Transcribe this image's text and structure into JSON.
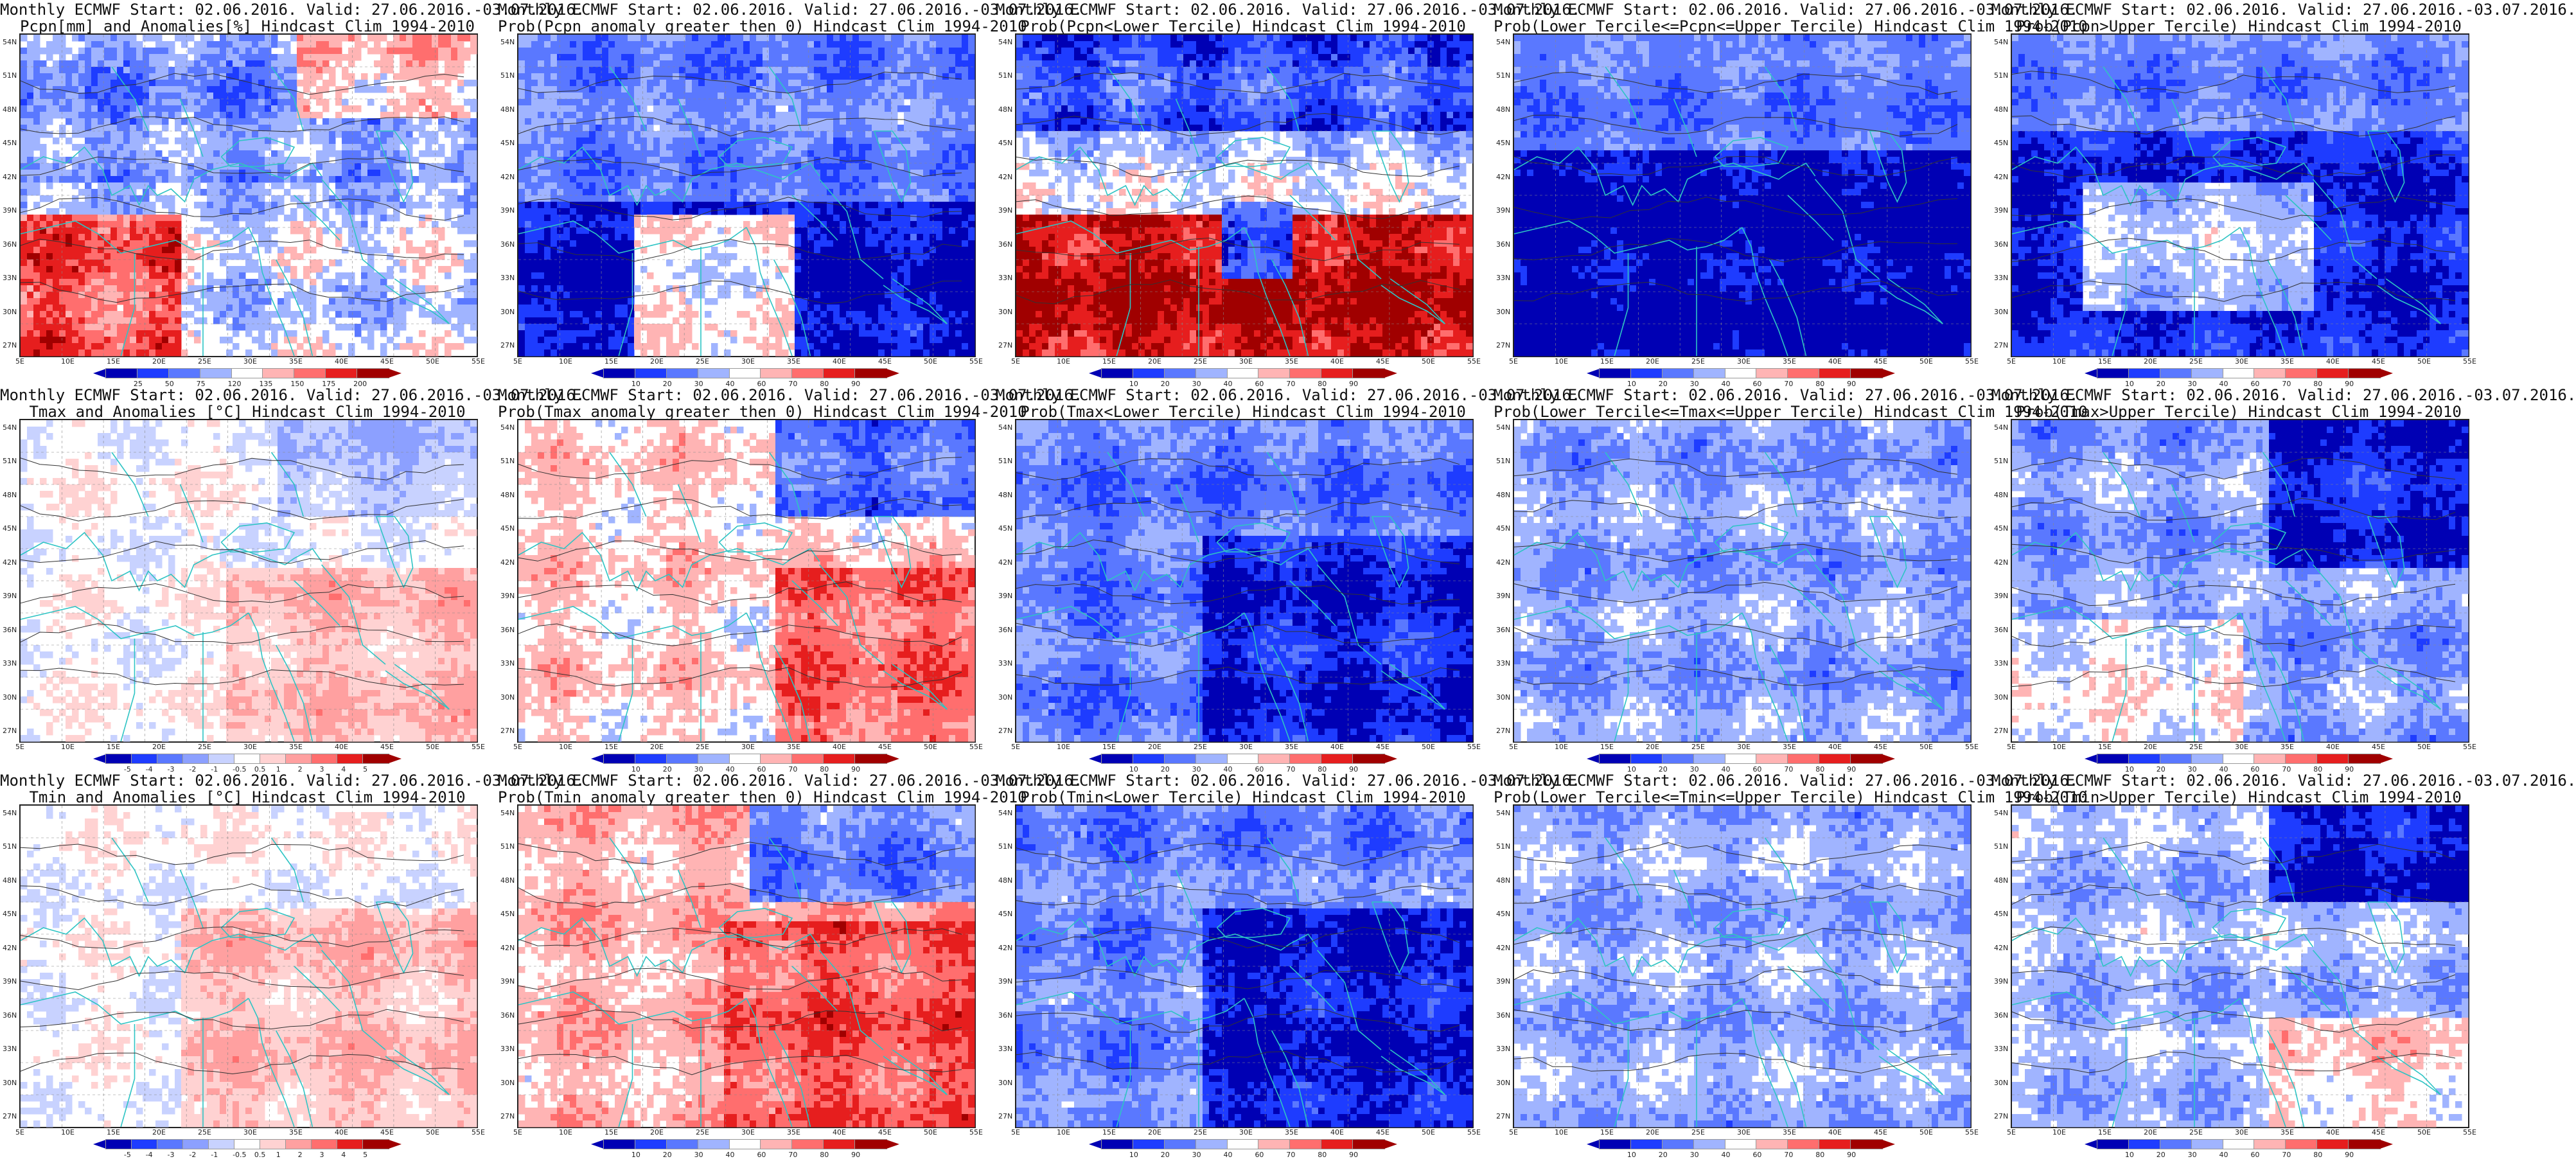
{
  "panels": [
    {
      "line1": "Monthly ECMWF Start: 02.06.2016. Valid: 27.06.2016.-03.07.2016.",
      "line2": "Pcpn[mm] and Anomalies[%] Hindcast Clim 1994-2010",
      "scheme": "pcpn_anom",
      "ticks": [
        "25",
        "50",
        "75",
        "120",
        "135",
        "150",
        "175",
        "200"
      ]
    },
    {
      "line1": "Monthly ECMWF Start: 02.06.2016. Valid: 27.06.2016.-03.07.2016.",
      "line2": "Prob(Pcpn anomaly greater then 0) Hindcast Clim 1994-2010",
      "scheme": "prob",
      "ticks": [
        "10",
        "20",
        "30",
        "40",
        "60",
        "70",
        "80",
        "90"
      ]
    },
    {
      "line1": "Monthly ECMWF Start: 02.06.2016. Valid: 27.06.2016.-03.07.2016.",
      "line2": "Prob(Pcpn<Lower Tercile) Hindcast Clim 1994-2010",
      "scheme": "prob",
      "ticks": [
        "10",
        "20",
        "30",
        "40",
        "60",
        "70",
        "80",
        "90"
      ]
    },
    {
      "line1": "Monthly ECMWF Start: 02.06.2016. Valid: 27.06.2016.-03.07.2016.",
      "line2": "Prob(Lower Tercile<=Pcpn<=Upper Tercile) Hindcast Clim 1994-2010",
      "scheme": "prob",
      "ticks": [
        "10",
        "20",
        "30",
        "40",
        "60",
        "70",
        "80",
        "90"
      ]
    },
    {
      "line1": "Monthly ECMWF Start: 02.06.2016. Valid: 27.06.2016.-03.07.2016.",
      "line2": "Prob(Pcpn>Upper Tercile) Hindcast Clim 1994-2010",
      "scheme": "prob",
      "ticks": [
        "10",
        "20",
        "30",
        "40",
        "60",
        "70",
        "80",
        "90"
      ]
    },
    {
      "line1": "Monthly ECMWF Start: 02.06.2016. Valid: 27.06.2016.-03.07.2016.",
      "line2": "Tmax and Anomalies [°C] Hindcast Clim 1994-2010",
      "scheme": "temp_anom",
      "ticks": [
        "-5",
        "-4",
        "-3",
        "-2",
        "-1",
        "-0.5",
        "0.5",
        "1",
        "2",
        "3",
        "4",
        "5"
      ]
    },
    {
      "line1": "Monthly ECMWF Start: 02.06.2016. Valid: 27.06.2016.-03.07.2016.",
      "line2": "Prob(Tmax anomaly greater then 0) Hindcast Clim 1994-2010",
      "scheme": "prob",
      "ticks": [
        "10",
        "20",
        "30",
        "40",
        "60",
        "70",
        "80",
        "90"
      ]
    },
    {
      "line1": "Monthly ECMWF Start: 02.06.2016. Valid: 27.06.2016.-03.07.2016.",
      "line2": "Prob(Tmax<Lower Tercile) Hindcast Clim 1994-2010",
      "scheme": "prob",
      "ticks": [
        "10",
        "20",
        "30",
        "40",
        "60",
        "70",
        "80",
        "90"
      ]
    },
    {
      "line1": "Monthly ECMWF Start: 02.06.2016. Valid: 27.06.2016.-03.07.2016.",
      "line2": "Prob(Lower Tercile<=Tmax<=Upper Tercile) Hindcast Clim 1994-2010",
      "scheme": "prob",
      "ticks": [
        "10",
        "20",
        "30",
        "40",
        "60",
        "70",
        "80",
        "90"
      ]
    },
    {
      "line1": "Monthly ECMWF Start: 02.06.2016. Valid: 27.06.2016.-03.07.2016.",
      "line2": "Prob(Tmax>Upper Tercile) Hindcast Clim 1994-2010",
      "scheme": "prob",
      "ticks": [
        "10",
        "20",
        "30",
        "40",
        "60",
        "70",
        "80",
        "90"
      ]
    },
    {
      "line1": "Monthly ECMWF Start: 02.06.2016. Valid: 27.06.2016.-03.07.2016.",
      "line2": "Tmin and Anomalies [°C] Hindcast Clim 1994-2010",
      "scheme": "temp_anom",
      "ticks": [
        "-5",
        "-4",
        "-3",
        "-2",
        "-1",
        "-0.5",
        "0.5",
        "1",
        "2",
        "3",
        "4",
        "5"
      ]
    },
    {
      "line1": "Monthly ECMWF Start: 02.06.2016. Valid: 27.06.2016.-03.07.2016.",
      "line2": "Prob(Tmin anomaly greater then 0) Hindcast Clim 1994-2010",
      "scheme": "prob",
      "ticks": [
        "10",
        "20",
        "30",
        "40",
        "60",
        "70",
        "80",
        "90"
      ]
    },
    {
      "line1": "Monthly ECMWF Start: 02.06.2016. Valid: 27.06.2016.-03.07.2016.",
      "line2": "Prob(Tmin<Lower Tercile) Hindcast Clim 1994-2010",
      "scheme": "prob",
      "ticks": [
        "10",
        "20",
        "30",
        "40",
        "60",
        "70",
        "80",
        "90"
      ]
    },
    {
      "line1": "Monthly ECMWF Start: 02.06.2016. Valid: 27.06.2016.-03.07.2016.",
      "line2": "Prob(Lower Tercile<=Tmin<=Upper Tercile) Hindcast Clim 1994-2010",
      "scheme": "prob",
      "ticks": [
        "10",
        "20",
        "30",
        "40",
        "60",
        "70",
        "80",
        "90"
      ]
    },
    {
      "line1": "Monthly ECMWF Start: 02.06.2016. Valid: 27.06.2016.-03.07.2016.",
      "line2": "Prob(Tmin>Upper Tercile) Hindcast Clim 1994-2010",
      "scheme": "prob",
      "ticks": [
        "10",
        "20",
        "30",
        "40",
        "60",
        "70",
        "80",
        "90"
      ]
    }
  ],
  "lat_labels": [
    "54N",
    "51N",
    "48N",
    "45N",
    "42N",
    "39N",
    "36N",
    "33N",
    "30N",
    "27N"
  ],
  "lon_labels": [
    "5E",
    "10E",
    "15E",
    "20E",
    "25E",
    "30E",
    "35E",
    "40E",
    "45E",
    "50E",
    "55E"
  ],
  "colors": {
    "border": "#222222",
    "coast": "#2ec4c4",
    "prob_scale": [
      "#0000b4",
      "#1e3cff",
      "#5a78ff",
      "#a0b4ff",
      "#ffffff",
      "#ffb4b4",
      "#ff6e6e",
      "#e61e1e",
      "#a00000"
    ],
    "temp_scale": [
      "#0000b4",
      "#1e3cff",
      "#5a78ff",
      "#8ca0ff",
      "#c8d2ff",
      "#ffffff",
      "#ffd2d2",
      "#ffa0a0",
      "#ff6e6e",
      "#e61e1e",
      "#a00000"
    ],
    "pcpn_scale": [
      "#0000b4",
      "#1e3cff",
      "#5a78ff",
      "#a0b4ff",
      "#ffffff",
      "#ffb4b4",
      "#ff6e6e",
      "#e61e1e",
      "#a00000"
    ]
  }
}
